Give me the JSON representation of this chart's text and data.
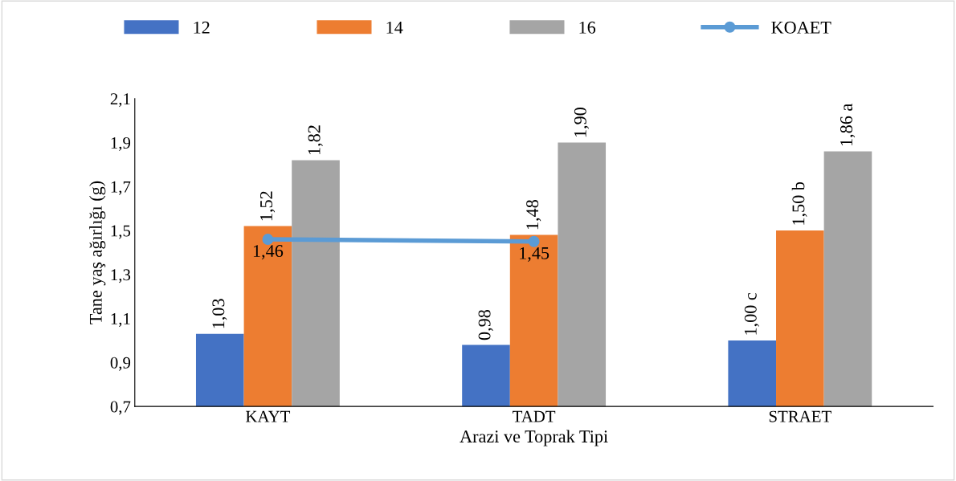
{
  "chart_data": {
    "type": "bar",
    "xlabel": "Arazi ve Toprak Tipi",
    "ylabel": "Tane yaş ağırlığı (g)",
    "categories": [
      "KAYT",
      "TADT",
      "STRAET"
    ],
    "series": [
      {
        "name": "12",
        "color": "#4472c4",
        "values": [
          1.03,
          0.98,
          1.0
        ],
        "value_labels": [
          "1,03",
          "0,98",
          "1,00 c"
        ]
      },
      {
        "name": "14",
        "color": "#ed7d31",
        "values": [
          1.52,
          1.48,
          1.5
        ],
        "value_labels": [
          "1,52",
          "1,48",
          "1,50 b"
        ]
      },
      {
        "name": "16",
        "color": "#a5a5a5",
        "values": [
          1.82,
          1.9,
          1.86
        ],
        "value_labels": [
          "1,82",
          "1,90",
          "1,86 a"
        ]
      },
      {
        "name": "KOAET",
        "type": "line",
        "color": "#5b9bd5",
        "values": [
          1.46,
          1.45,
          null
        ],
        "value_labels": [
          "1,46",
          "1,45",
          null
        ]
      }
    ],
    "ylim": [
      0.7,
      2.1
    ],
    "yticks": [
      {
        "value": 0.7,
        "label": "0,7"
      },
      {
        "value": 0.9,
        "label": "0,9"
      },
      {
        "value": 1.1,
        "label": "1,1"
      },
      {
        "value": 1.3,
        "label": "1,3"
      },
      {
        "value": 1.5,
        "label": "1,5"
      },
      {
        "value": 1.7,
        "label": "1,7"
      },
      {
        "value": 1.9,
        "label": "1,9"
      },
      {
        "value": 2.1,
        "label": "2,1"
      }
    ],
    "grid": false,
    "legend": "top",
    "marker": "circle"
  }
}
